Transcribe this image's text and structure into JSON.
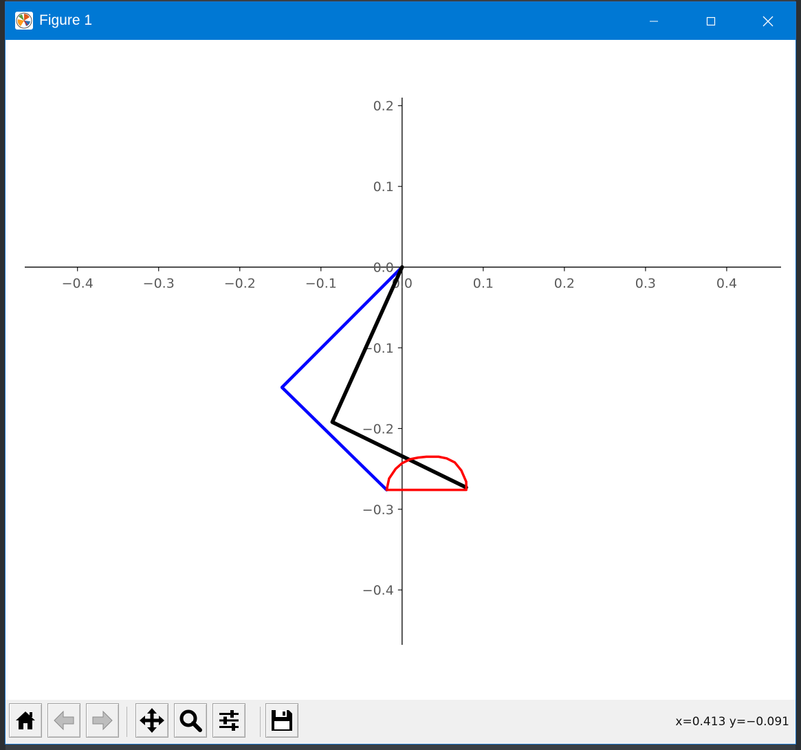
{
  "window": {
    "title": "Figure 1",
    "icons": {
      "app": "matplotlib-icon",
      "minimize": "minimize-icon",
      "maximize": "maximize-icon",
      "close": "close-icon"
    }
  },
  "toolbar": {
    "buttons": [
      {
        "name": "home",
        "icon": "home-icon"
      },
      {
        "name": "back",
        "icon": "arrow-left-icon"
      },
      {
        "name": "forward",
        "icon": "arrow-right-icon"
      },
      {
        "name": "pan",
        "icon": "move-icon"
      },
      {
        "name": "zoom",
        "icon": "magnifier-icon"
      },
      {
        "name": "configure-subplots",
        "icon": "sliders-icon"
      },
      {
        "name": "save",
        "icon": "floppy-disk-icon"
      }
    ],
    "coordinates": "x=0.413 y=−0.091"
  },
  "chart_data": {
    "type": "line",
    "title": "",
    "xlabel": "",
    "ylabel": "",
    "xlim": [
      -0.465,
      0.467
    ],
    "ylim": [
      -0.468,
      0.21
    ],
    "grid": false,
    "axes_style": "centered spines through origin",
    "xticks": [
      -0.4,
      -0.3,
      -0.2,
      -0.1,
      0.0,
      0.1,
      0.2,
      0.3,
      0.4
    ],
    "yticks": [
      -0.4,
      -0.3,
      -0.2,
      -0.1,
      0.0,
      0.1,
      0.2
    ],
    "xtick_labels": [
      "−0.4",
      "−0.3",
      "−0.2",
      "−0.1",
      "0.0",
      "0.1",
      "0.2",
      "0.3",
      "0.4"
    ],
    "ytick_labels": [
      "−0.4",
      "−0.3",
      "−0.2",
      "−0.1",
      "0.0",
      "0.1",
      "0.2"
    ],
    "series": [
      {
        "color": "#0000ff",
        "x": [
          0.0,
          -0.148,
          -0.019
        ],
        "y": [
          0.0,
          -0.149,
          -0.276
        ]
      },
      {
        "color": "#000000",
        "x": [
          0.0,
          -0.086,
          0.079
        ],
        "y": [
          0.0,
          -0.192,
          -0.273
        ]
      },
      {
        "color": "#ff0000",
        "x": [
          -0.019,
          -0.016,
          -0.008,
          0.0,
          0.01,
          0.02,
          0.03,
          0.045,
          0.055,
          0.065,
          0.073,
          0.079,
          0.079,
          -0.019
        ],
        "y": [
          -0.276,
          -0.262,
          -0.25,
          -0.243,
          -0.238,
          -0.236,
          -0.235,
          -0.235,
          -0.237,
          -0.242,
          -0.252,
          -0.266,
          -0.276,
          -0.276
        ]
      }
    ]
  }
}
